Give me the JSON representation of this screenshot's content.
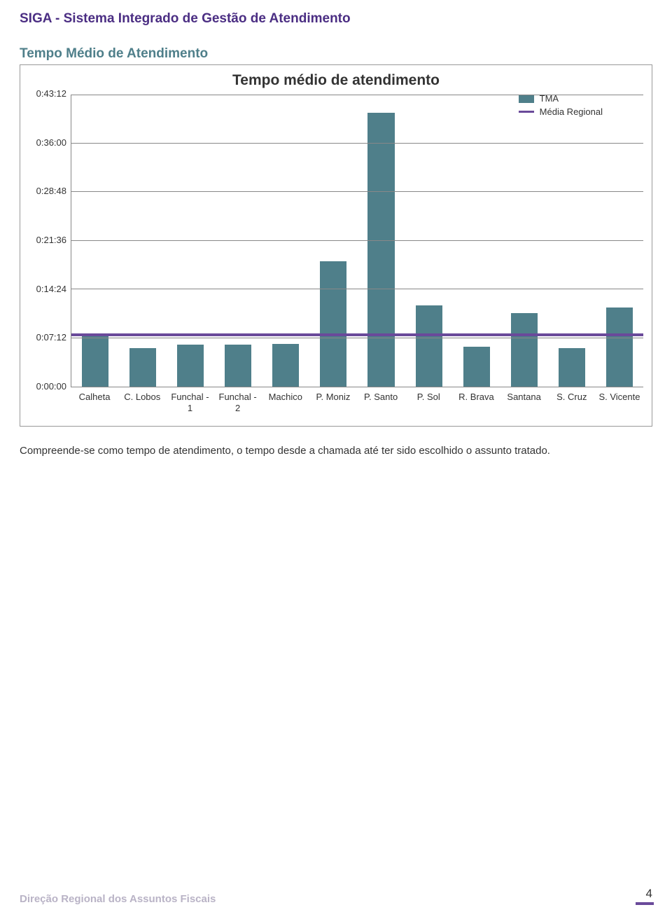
{
  "header": {
    "title": "SIGA - Sistema Integrado de Gestão de Atendimento"
  },
  "section": {
    "title": "Tempo Médio de Atendimento"
  },
  "chart": {
    "type": "bar",
    "title": "Tempo médio de atendimento",
    "background_color": "#ffffff",
    "grid_color": "#888888",
    "bar_color": "#4f7f8a",
    "line_color": "#6a4a9a",
    "title_fontsize": 21,
    "label_fontsize": 13,
    "bar_width": 0.56,
    "y": {
      "max_seconds": 2592,
      "ticks": [
        "0:43:12",
        "0:36:00",
        "0:28:48",
        "0:21:36",
        "0:14:24",
        "0:07:12",
        "0:00:00"
      ],
      "tick_seconds": [
        2592,
        2160,
        1728,
        1296,
        864,
        432,
        0
      ]
    },
    "categories": [
      "Calheta",
      "C. Lobos",
      "Funchal - 1",
      "Funchal - 2",
      "Machico",
      "P. Moniz",
      "P. Santo",
      "P. Sol",
      "R. Brava",
      "Santana",
      "S. Cruz",
      "S. Vicente"
    ],
    "values_seconds": [
      460,
      340,
      375,
      370,
      380,
      1110,
      2430,
      720,
      355,
      650,
      340,
      700
    ],
    "avg_line_seconds": 450,
    "legend": {
      "bar_label": "TMA",
      "line_label": "Média Regional"
    }
  },
  "caption": "Compreende-se como tempo de atendimento, o tempo desde a chamada até ter sido escolhido o assunto tratado.",
  "footer": {
    "text": "Direção Regional dos Assuntos Fiscais",
    "page": "4"
  }
}
